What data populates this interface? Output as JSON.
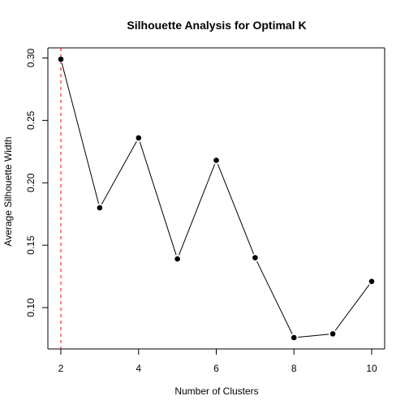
{
  "chart_data": {
    "type": "line",
    "title": "Silhouette Analysis for Optimal K",
    "xlabel": "Number of Clusters",
    "ylabel": "Average Silhouette Width",
    "x": [
      2,
      3,
      4,
      5,
      6,
      7,
      8,
      9,
      10
    ],
    "series": [
      {
        "name": "Average Silhouette Width",
        "values": [
          0.299,
          0.18,
          0.236,
          0.139,
          0.218,
          0.14,
          0.076,
          0.079,
          0.121
        ],
        "line_color": "#000000",
        "marker": "filled-circle"
      }
    ],
    "x_ticks": [
      2,
      4,
      6,
      8,
      10
    ],
    "x_tick_labels": [
      "2",
      "4",
      "6",
      "8",
      "10"
    ],
    "y_ticks": [
      0.1,
      0.15,
      0.2,
      0.25,
      0.3
    ],
    "y_tick_labels": [
      "0.10",
      "0.15",
      "0.20",
      "0.25",
      "0.30"
    ],
    "xlim": [
      2,
      10
    ],
    "ylim": [
      0.076,
      0.299
    ],
    "grid": false,
    "reference_line": {
      "axis": "x",
      "value": 2,
      "color": "#ff0000",
      "style": "dashed"
    }
  }
}
